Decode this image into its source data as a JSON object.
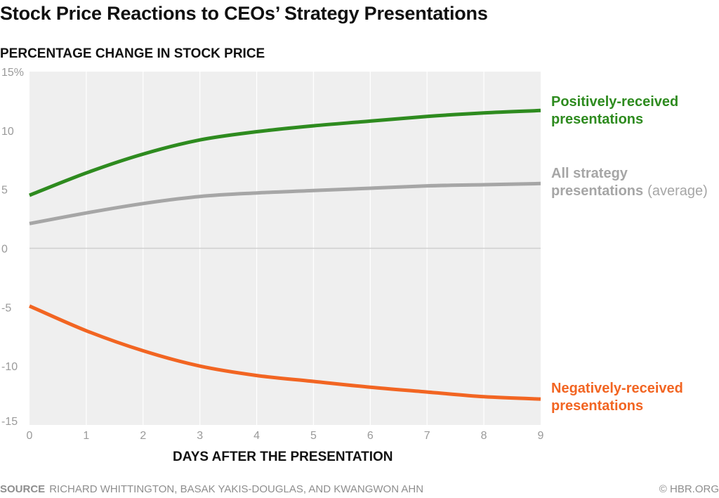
{
  "title": "Stock Price Reactions to CEOs’ Strategy Presentations",
  "chart_data": {
    "type": "line",
    "ylabel": "PERCENTAGE CHANGE IN STOCK PRICE",
    "xlabel": "DAYS AFTER THE PRESENTATION",
    "x": [
      0,
      1,
      2,
      3,
      4,
      5,
      6,
      7,
      8,
      9
    ],
    "xlim": [
      0,
      9
    ],
    "ylim": [
      -15,
      15
    ],
    "yticks": [
      15,
      10,
      5,
      0,
      -5,
      -10,
      -15
    ],
    "ytick_labels": [
      "15%",
      "10",
      "5",
      "0",
      "-5",
      "-10",
      "-15"
    ],
    "xtick_labels": [
      "0",
      "1",
      "2",
      "3",
      "4",
      "5",
      "6",
      "7",
      "8",
      "9"
    ],
    "grid": "vertical",
    "legend": "inline-right",
    "background": "#efefef",
    "series": [
      {
        "id": "positive",
        "label_lines": [
          "Positively-received",
          "presentations"
        ],
        "label_suffix": "",
        "color": "#2e8b1f",
        "values": [
          4.5,
          6.4,
          8.0,
          9.2,
          9.9,
          10.4,
          10.8,
          11.2,
          11.5,
          11.7
        ]
      },
      {
        "id": "average",
        "label_lines": [
          "All strategy",
          "presentations"
        ],
        "label_suffix": "(average)",
        "color": "#a6a6a6",
        "values": [
          2.1,
          3.0,
          3.8,
          4.4,
          4.7,
          4.9,
          5.1,
          5.3,
          5.4,
          5.5
        ]
      },
      {
        "id": "negative",
        "label_lines": [
          "Negatively-received",
          "presentations"
        ],
        "label_suffix": "",
        "color": "#f26522",
        "values": [
          -4.9,
          -7.0,
          -8.7,
          -10.0,
          -10.8,
          -11.3,
          -11.8,
          -12.2,
          -12.6,
          -12.8
        ]
      }
    ]
  },
  "footer": {
    "source_key": "SOURCE",
    "source_text": "RICHARD WHITTINGTON, BASAK YAKIS-DOUGLAS, AND KWANGWON AHN",
    "credit": "© HBR.ORG"
  }
}
